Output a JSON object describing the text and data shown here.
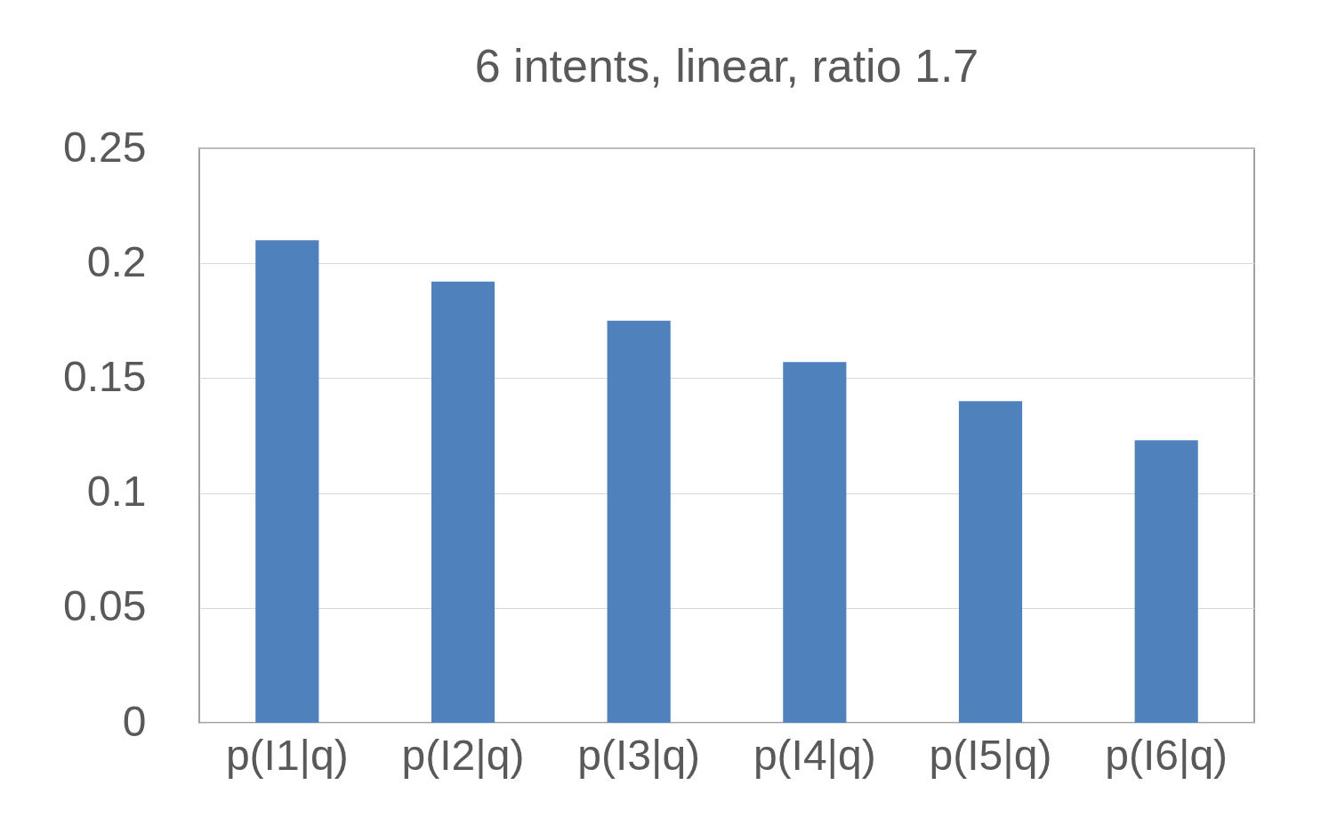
{
  "chart_data": {
    "type": "bar",
    "title": "6 intents, linear, ratio 1.7",
    "categories": [
      "p(I1|q)",
      "p(I2|q)",
      "p(I3|q)",
      "p(I4|q)",
      "p(I5|q)",
      "p(I6|q)"
    ],
    "values": [
      0.21,
      0.192,
      0.175,
      0.157,
      0.14,
      0.123
    ],
    "color": "#4f81bd",
    "ylim": [
      0,
      0.25
    ],
    "yticks": [
      0,
      0.05,
      0.1,
      0.15,
      0.2,
      0.25
    ],
    "grid": "y"
  }
}
